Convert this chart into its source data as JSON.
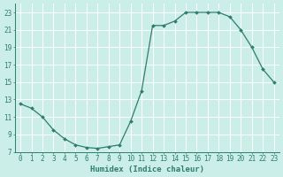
{
  "x": [
    0,
    1,
    2,
    3,
    4,
    5,
    6,
    7,
    8,
    9,
    10,
    11,
    12,
    13,
    14,
    15,
    16,
    17,
    18,
    19,
    20,
    21,
    22,
    23
  ],
  "y": [
    12.5,
    12.0,
    11.0,
    9.5,
    8.5,
    7.8,
    7.5,
    7.4,
    7.6,
    7.8,
    10.5,
    14.0,
    21.5,
    21.5,
    22.0,
    23.0,
    23.0,
    23.0,
    23.0,
    22.5,
    21.0,
    19.0,
    16.5,
    15.0
  ],
  "xlim": [
    -0.5,
    23.5
  ],
  "ylim": [
    7,
    24
  ],
  "yticks": [
    7,
    9,
    11,
    13,
    15,
    17,
    19,
    21,
    23
  ],
  "xticks": [
    0,
    1,
    2,
    3,
    4,
    5,
    6,
    7,
    8,
    9,
    10,
    11,
    12,
    13,
    14,
    15,
    16,
    17,
    18,
    19,
    20,
    21,
    22,
    23
  ],
  "xlabel": "Humidex (Indice chaleur)",
  "line_color": "#2e7d6e",
  "marker": "D",
  "marker_size": 2,
  "bg_color": "#cceee8",
  "grid_color": "#ffffff",
  "tick_color": "#2e7d6e",
  "label_color": "#2e7d6e",
  "font_family": "monospace",
  "tick_fontsize": 5.5,
  "xlabel_fontsize": 6.5
}
